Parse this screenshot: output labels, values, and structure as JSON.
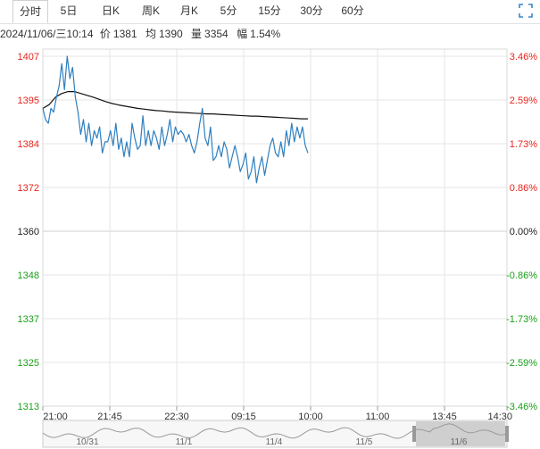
{
  "tabs": [
    {
      "label": "分时",
      "active": true
    },
    {
      "label": "5日"
    },
    {
      "label": "日K"
    },
    {
      "label": "周K"
    },
    {
      "label": "月K"
    },
    {
      "label": "5分"
    },
    {
      "label": "15分"
    },
    {
      "label": "30分"
    },
    {
      "label": "60分"
    }
  ],
  "fullscreen_icon": "fullscreen-icon",
  "info": {
    "datetime": "2024/11/06/三10:14",
    "price_label": "价",
    "price": "1381",
    "avg_label": "均",
    "avg": "1390",
    "volume_label": "量",
    "volume": "3354",
    "change_label": "幅",
    "change": "1.54%"
  },
  "colors": {
    "up": "#e8231b",
    "down": "#1aa01a",
    "neutral": "#222222",
    "price_line": "#2e7fbf",
    "avg_line": "#111111",
    "grid": "#e6e6e6"
  },
  "chart_data": {
    "type": "line",
    "x_ticks": [
      "21:00",
      "21:45",
      "22:30",
      "09:15",
      "10:00",
      "11:00",
      "13:45",
      "14:30"
    ],
    "y_ticks_left": [
      "1407",
      "1395",
      "1384",
      "1372",
      "1360",
      "1348",
      "1337",
      "1325",
      "1313"
    ],
    "y_ticks_right": [
      "3.46%",
      "2.59%",
      "1.73%",
      "0.86%",
      "0.00%",
      "-0.86%",
      "-1.73%",
      "-2.59%",
      "-3.46%"
    ],
    "ylim": [
      1313,
      1407
    ],
    "baseline": 1360,
    "grid": true,
    "series": [
      {
        "values": [
          1393,
          1390,
          1389,
          1393,
          1392,
          1396,
          1399,
          1405,
          1398,
          1407,
          1401,
          1404,
          1396,
          1392,
          1386,
          1390,
          1384,
          1389,
          1383,
          1387,
          1385,
          1388,
          1381,
          1384,
          1384,
          1387,
          1383,
          1389,
          1382,
          1385,
          1380,
          1384,
          1380,
          1389,
          1385,
          1382,
          1383,
          1391,
          1383,
          1387,
          1383,
          1387,
          1385,
          1382,
          1388,
          1383,
          1386,
          1390,
          1384,
          1388,
          1386,
          1387,
          1386,
          1384,
          1386,
          1383,
          1381,
          1384,
          1389,
          1393,
          1385,
          1383,
          1388,
          1379,
          1380,
          1383,
          1380,
          1384,
          1382,
          1377,
          1380,
          1383,
          1380,
          1376,
          1378,
          1381,
          1374,
          1376,
          1380,
          1373,
          1377,
          1380,
          1375,
          1379,
          1383,
          1385,
          1381,
          1380,
          1384,
          1380,
          1387,
          1383,
          1389,
          1384,
          1388,
          1385,
          1388,
          1383,
          1381
        ]
      },
      {
        "values": [
          1393,
          1394,
          1396,
          1397,
          1397.5,
          1397.5,
          1397,
          1396.5,
          1396,
          1395.4,
          1394.8,
          1394.3,
          1393.9,
          1393.6,
          1393.3,
          1393,
          1392.8,
          1392.6,
          1392.4,
          1392.3,
          1392.1,
          1392,
          1391.9,
          1391.8,
          1391.7,
          1391.6,
          1391.5,
          1391.5,
          1391.4,
          1391.3,
          1391.2,
          1391.1,
          1391,
          1390.9,
          1390.9,
          1390.8,
          1390.7,
          1390.6,
          1390.5,
          1390.4,
          1390.3,
          1390.2,
          1390.2
        ]
      }
    ]
  },
  "x_ticks": [
    "21:00",
    "21:45",
    "22:30",
    "09:15",
    "10:00",
    "11:00",
    "13:45",
    "14:30"
  ],
  "y_ticks_left": [
    "1407",
    "1395",
    "1384",
    "1372",
    "1360",
    "1348",
    "1337",
    "1325",
    "1313"
  ],
  "y_ticks_right": [
    "3.46%",
    "2.59%",
    "1.73%",
    "0.86%",
    "0.00%",
    "-0.86%",
    "-1.73%",
    "-2.59%",
    "-3.46%"
  ],
  "navigator": {
    "labels": [
      "10/31",
      "11/1",
      "11/4",
      "11/5",
      "11/6"
    ]
  }
}
